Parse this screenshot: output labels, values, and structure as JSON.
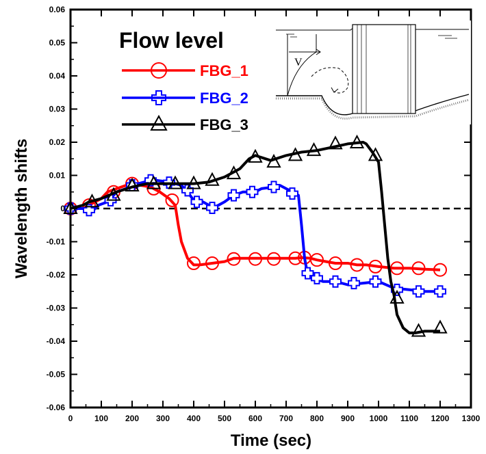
{
  "chart_data": {
    "type": "line",
    "title": "",
    "xlabel": "Time (sec)",
    "ylabel": "Wavelength shifts",
    "xlim": [
      0,
      1300
    ],
    "ylim": [
      -0.06,
      0.06
    ],
    "x_ticks": [
      "0",
      "100",
      "200",
      "300",
      "400",
      "500",
      "600",
      "700",
      "800",
      "900",
      "1000",
      "1100",
      "1200",
      "1300"
    ],
    "y_ticks": [
      "0.06",
      "0.05",
      "0.04",
      "0.03",
      "0.02",
      "0.01",
      "0",
      "-0.01",
      "-0.02",
      "-0.03",
      "-0.04",
      "-0.05",
      "-0.06"
    ],
    "legend_title": "Flow level",
    "legend_position": "top-left",
    "reference_line": {
      "y": 0,
      "style": "dashed"
    },
    "inset": "flow around bridge pier with local scour",
    "series": [
      {
        "name": "FBG_1",
        "color": "#ff0000",
        "marker": "circle",
        "x": [
          0,
          20,
          40,
          60,
          80,
          100,
          120,
          150,
          180,
          200,
          230,
          260,
          290,
          320,
          340,
          350,
          360,
          380,
          400,
          420,
          460,
          500,
          530,
          560,
          600,
          650,
          700,
          730,
          750,
          780,
          800,
          830,
          860,
          900,
          930,
          960,
          1000,
          1050,
          1100,
          1150,
          1200
        ],
        "y": [
          0,
          0,
          0,
          0.001,
          0.002,
          0.003,
          0.005,
          0.006,
          0.007,
          0.0075,
          0.007,
          0.0065,
          0.005,
          0.003,
          0.001,
          -0.005,
          -0.01,
          -0.015,
          -0.017,
          -0.017,
          -0.0165,
          -0.016,
          -0.015,
          -0.015,
          -0.015,
          -0.015,
          -0.015,
          -0.015,
          -0.0148,
          -0.015,
          -0.0155,
          -0.016,
          -0.0165,
          -0.0165,
          -0.017,
          -0.017,
          -0.0175,
          -0.018,
          -0.018,
          -0.0183,
          -0.0185
        ],
        "markers_x": [
          0,
          60,
          140,
          200,
          270,
          330,
          400,
          460,
          530,
          600,
          660,
          730,
          760,
          800,
          860,
          930,
          990,
          1060,
          1130,
          1200
        ],
        "markers_y": [
          0,
          0.001,
          0.005,
          0.0075,
          0.006,
          0.0025,
          -0.0165,
          -0.0165,
          -0.0152,
          -0.0152,
          -0.0152,
          -0.015,
          -0.0148,
          -0.0155,
          -0.0165,
          -0.017,
          -0.0175,
          -0.018,
          -0.018,
          -0.0185
        ]
      },
      {
        "name": "FBG_2",
        "color": "#0000ff",
        "marker": "plus",
        "x": [
          0,
          30,
          50,
          70,
          90,
          120,
          150,
          180,
          200,
          240,
          280,
          320,
          360,
          380,
          400,
          430,
          450,
          460,
          480,
          500,
          530,
          560,
          600,
          620,
          660,
          680,
          700,
          720,
          740,
          750,
          760,
          770,
          790,
          820,
          860,
          900,
          950,
          1000,
          1050,
          1100,
          1150,
          1200
        ],
        "y": [
          0,
          0,
          0,
          -0.001,
          0.001,
          0.002,
          0.005,
          0.006,
          0.007,
          0.008,
          0.0085,
          0.008,
          0.007,
          0.005,
          0.0025,
          0.002,
          0.001,
          0,
          0.001,
          0.002,
          0.004,
          0.005,
          0.005,
          0.006,
          0.0065,
          0.007,
          0.006,
          0.005,
          0.004,
          -0.005,
          -0.015,
          -0.02,
          -0.021,
          -0.022,
          -0.022,
          -0.023,
          -0.0225,
          -0.022,
          -0.024,
          -0.0245,
          -0.025,
          -0.025
        ],
        "markers_x": [
          0,
          60,
          130,
          200,
          260,
          320,
          380,
          410,
          460,
          530,
          590,
          660,
          720,
          770,
          800,
          860,
          920,
          990,
          1060,
          1130,
          1200
        ],
        "markers_y": [
          0,
          -0.0005,
          0.0025,
          0.007,
          0.0085,
          0.0078,
          0.0055,
          0.002,
          0.0002,
          0.004,
          0.005,
          0.0065,
          0.0045,
          -0.0195,
          -0.021,
          -0.022,
          -0.0225,
          -0.022,
          -0.0245,
          -0.025,
          -0.025
        ]
      },
      {
        "name": "FBG_3",
        "color": "#000000",
        "marker": "triangle",
        "x": [
          0,
          40,
          60,
          100,
          150,
          200,
          250,
          300,
          350,
          400,
          450,
          500,
          550,
          580,
          600,
          650,
          700,
          750,
          800,
          850,
          900,
          950,
          960,
          980,
          1000,
          1010,
          1020,
          1030,
          1040,
          1050,
          1060,
          1080,
          1100,
          1120,
          1150,
          1200
        ],
        "y": [
          0,
          0.001,
          0.002,
          0.003,
          0.005,
          0.0065,
          0.0075,
          0.0075,
          0.0075,
          0.0075,
          0.008,
          0.0095,
          0.012,
          0.015,
          0.016,
          0.0145,
          0.016,
          0.017,
          0.0175,
          0.0185,
          0.0195,
          0.02,
          0.0195,
          0.017,
          0.014,
          0.005,
          -0.005,
          -0.015,
          -0.022,
          -0.026,
          -0.032,
          -0.036,
          -0.0375,
          -0.0375,
          -0.037,
          -0.037
        ],
        "markers_x": [
          0,
          70,
          140,
          200,
          270,
          340,
          400,
          460,
          530,
          600,
          660,
          730,
          790,
          860,
          930,
          990,
          1060,
          1130,
          1200
        ],
        "markers_y": [
          0,
          0.002,
          0.004,
          0.0068,
          0.0075,
          0.0075,
          0.0075,
          0.0085,
          0.0105,
          0.0155,
          0.014,
          0.016,
          0.0175,
          0.0195,
          0.0198,
          0.016,
          -0.027,
          -0.037,
          -0.036
        ]
      }
    ]
  }
}
